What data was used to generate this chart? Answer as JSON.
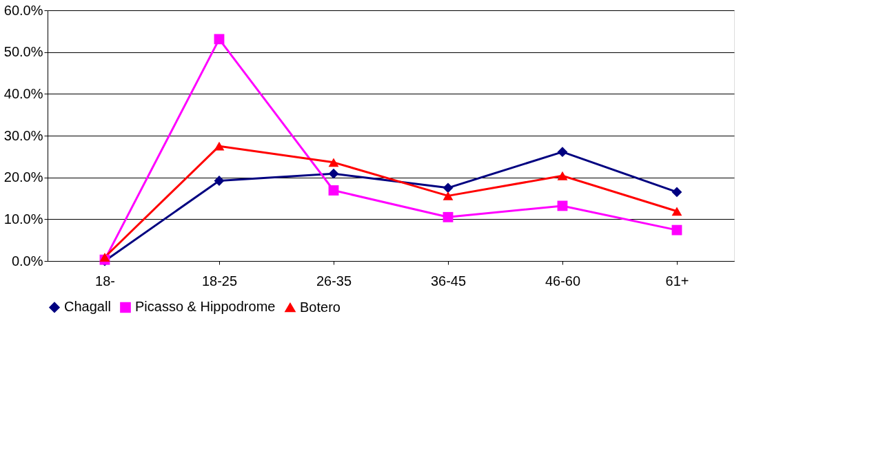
{
  "chart_data": {
    "type": "line",
    "categories": [
      "18-",
      "18-25",
      "26-35",
      "36-45",
      "46-60",
      "61+"
    ],
    "series": [
      {
        "name": "Chagall",
        "color": "#000080",
        "marker": "diamond",
        "values": [
          0.0,
          19.2,
          20.9,
          17.5,
          26.1,
          16.5
        ]
      },
      {
        "name": "Picasso & Hippodrome",
        "color": "#ff00ff",
        "marker": "square",
        "values": [
          0.3,
          53.1,
          16.9,
          10.5,
          13.2,
          7.4
        ]
      },
      {
        "name": "Botero",
        "color": "#ff0000",
        "marker": "triangle",
        "values": [
          0.9,
          27.5,
          23.6,
          15.6,
          20.4,
          11.9
        ]
      }
    ],
    "ylim": [
      0,
      60
    ],
    "yticks": [
      {
        "value": 0,
        "label": "0.0%"
      },
      {
        "value": 10,
        "label": "10.0%"
      },
      {
        "value": 20,
        "label": "20.0%"
      },
      {
        "value": 30,
        "label": "30.0%"
      },
      {
        "value": 40,
        "label": "40.0%"
      },
      {
        "value": 50,
        "label": "50.0%"
      },
      {
        "value": 60,
        "label": "60.0%"
      }
    ],
    "grid": "y",
    "legend": "bottom",
    "line_style": "solid"
  }
}
